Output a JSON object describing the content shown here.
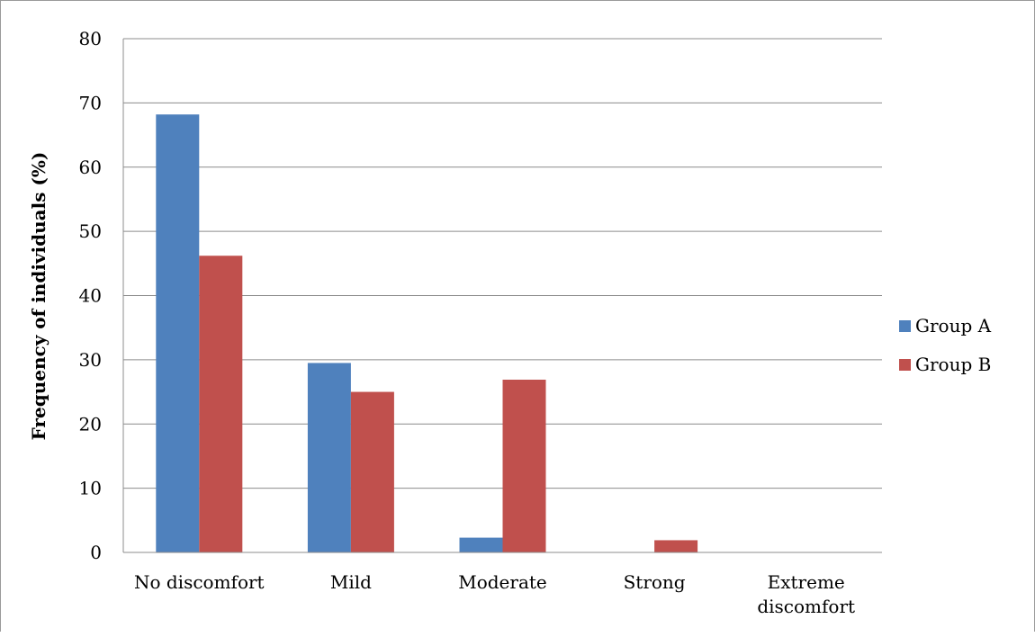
{
  "chart_data": {
    "type": "bar",
    "ylabel": "Frequency of individuals (%)",
    "xlabel": "",
    "ylim": [
      0,
      80
    ],
    "yticks": [
      0,
      10,
      20,
      30,
      40,
      50,
      60,
      70,
      80
    ],
    "grid": true,
    "legend_position": "right",
    "categories": [
      "No discomfort",
      "Mild",
      "Moderate",
      "Strong",
      "Extreme discomfort"
    ],
    "category_label_lines": [
      [
        "No discomfort"
      ],
      [
        "Mild"
      ],
      [
        "Moderate"
      ],
      [
        "Strong"
      ],
      [
        "Extreme",
        "discomfort"
      ]
    ],
    "series": [
      {
        "name": "Group A",
        "color": "#4f81bd",
        "values": [
          68.2,
          29.5,
          2.3,
          0,
          0
        ]
      },
      {
        "name": "Group B",
        "color": "#c0504d",
        "values": [
          46.2,
          25.0,
          26.9,
          1.9,
          0
        ]
      }
    ]
  }
}
